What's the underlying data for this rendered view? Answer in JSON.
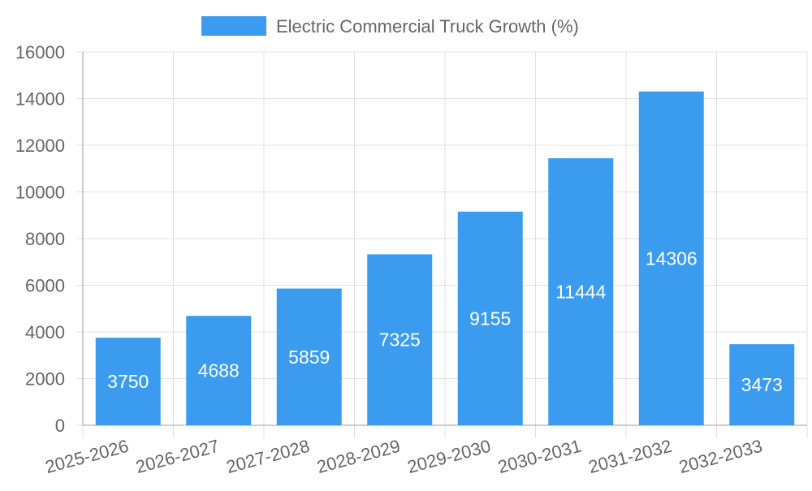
{
  "chart_data": {
    "type": "bar",
    "title": "",
    "xlabel": "",
    "ylabel": "",
    "legend": {
      "position": "top",
      "label": "Electric Commercial Truck Growth (%)"
    },
    "categories": [
      "2025-2026",
      "2026-2027",
      "2027-2028",
      "2028-2029",
      "2029-2030",
      "2030-2031",
      "2031-2032",
      "2032-2033"
    ],
    "series": [
      {
        "name": "Electric Commercial Truck Growth (%)",
        "values": [
          3750,
          4688,
          5859,
          7325,
          9155,
          11444,
          14306,
          3473
        ],
        "color": "#3b9bef"
      }
    ],
    "data_labels": [
      "3750",
      "4688",
      "5859",
      "7325",
      "9155",
      "11444",
      "14306",
      "3473"
    ],
    "ylim": [
      0,
      16000
    ],
    "yticks": [
      "0",
      "2000",
      "4000",
      "6000",
      "8000",
      "10000",
      "12000",
      "14000",
      "16000"
    ],
    "grid": true,
    "colors": {
      "grid": "#e1e1e1",
      "axis": "#9e9e9e",
      "text": "#666666",
      "label": "#ffffff"
    }
  }
}
